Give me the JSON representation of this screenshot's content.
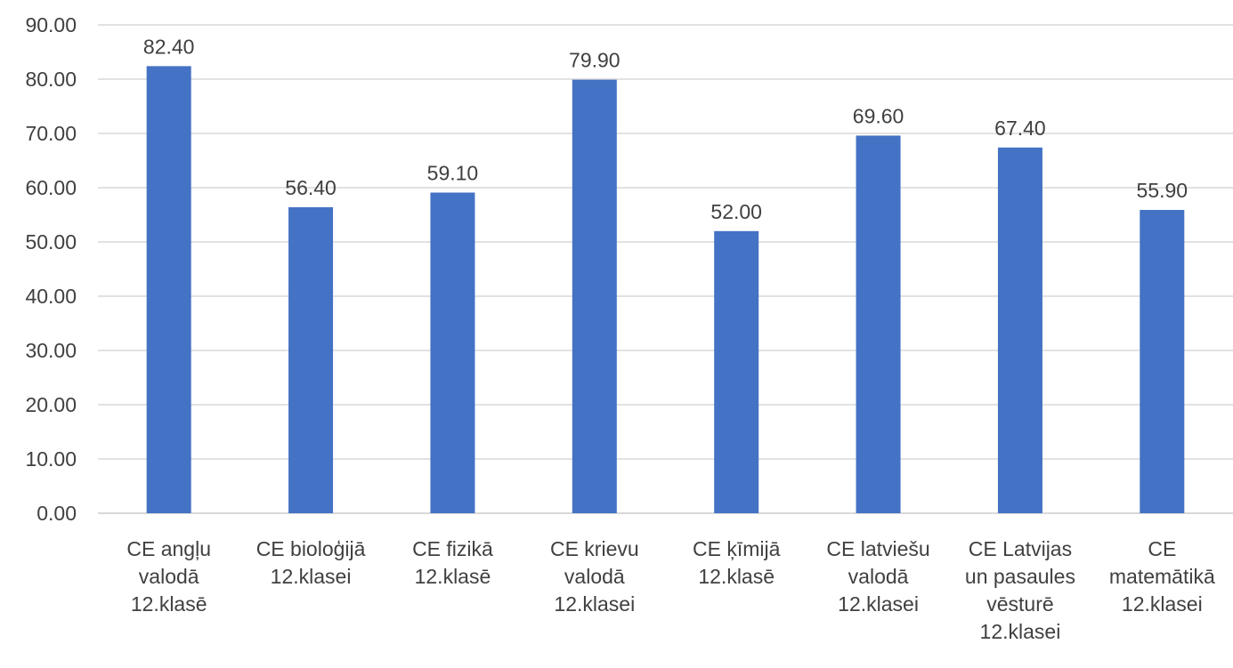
{
  "chart_data": {
    "type": "bar",
    "categories": [
      [
        "CE angļu",
        "valodā",
        "12.klasē"
      ],
      [
        "CE bioloģijā",
        "12.klasei"
      ],
      [
        "CE fizikā",
        "12.klasē"
      ],
      [
        "CE krievu",
        "valodā",
        "12.klasei"
      ],
      [
        "CE ķīmijā",
        "12.klasē"
      ],
      [
        "CE latviešu",
        "valodā",
        "12.klasei"
      ],
      [
        "CE Latvijas",
        "un pasaules",
        "vēsturē",
        "12.klasei"
      ],
      [
        "CE",
        "matemātikā",
        "12.klasei"
      ]
    ],
    "values": [
      82.4,
      56.4,
      59.1,
      79.9,
      52.0,
      69.6,
      67.4,
      55.9
    ],
    "data_labels": [
      "82.40",
      "56.40",
      "59.10",
      "79.90",
      "52.00",
      "69.60",
      "67.40",
      "55.90"
    ],
    "y_ticks": [
      "0.00",
      "10.00",
      "20.00",
      "30.00",
      "40.00",
      "50.00",
      "60.00",
      "70.00",
      "80.00",
      "90.00"
    ],
    "ylim": [
      0,
      90
    ],
    "grid": true,
    "bar_color": "#4472C4",
    "gridline_color": "#D9D9D9",
    "text_color": "#404040"
  }
}
